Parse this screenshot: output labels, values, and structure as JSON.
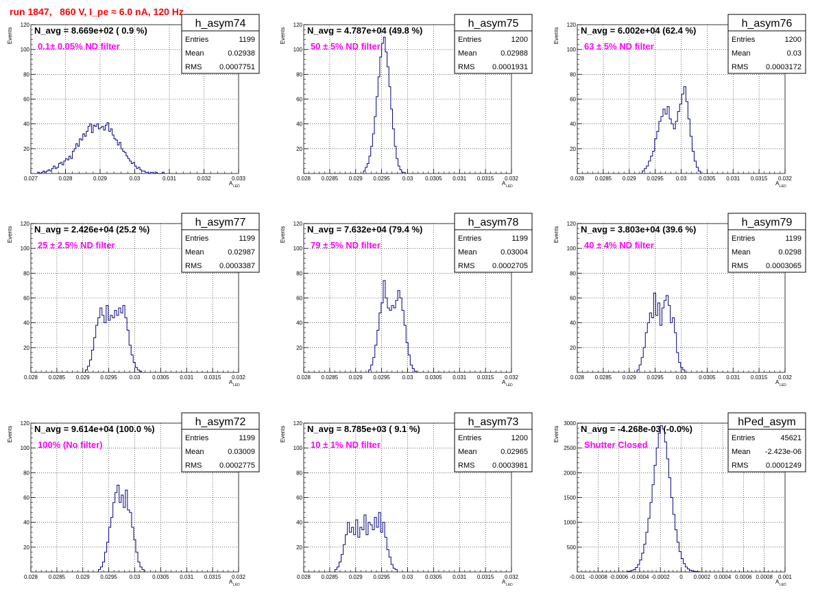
{
  "run_title": "run 1847,   860 V, I_pe ≈ 6.0 nA, 120 Hz",
  "y_axis_label": "Events",
  "x_axis_label": "A",
  "x_axis_label_sub": "LED",
  "stats_labels": {
    "entries": "Entries",
    "mean": "Mean",
    "rms": "RMS"
  },
  "colors": {
    "histogram": "#00007f",
    "title": "#ff0000",
    "filter": "#ff00ff",
    "grid": "#000000"
  },
  "chart_data": [
    {
      "type": "bar",
      "hist_name": "h_asym74",
      "nav_text": "N_avg = 8.669e+02 ( 0.9 %)",
      "filter_text": "0.1± 0.05% ND filter",
      "entries": "1199",
      "mean": "0.02938",
      "rms": "0.0007751",
      "xlim": [
        0.027,
        0.033
      ],
      "ylim": [
        0,
        120
      ],
      "x_ticks": [
        {
          "v": 0.027,
          "t": "0.027"
        },
        {
          "v": 0.028,
          "t": "0.028"
        },
        {
          "v": 0.029,
          "t": "0.029"
        },
        {
          "v": 0.03,
          "t": "0.03"
        },
        {
          "v": 0.031,
          "t": "0.031"
        },
        {
          "v": 0.032,
          "t": "0.032"
        },
        {
          "v": 0.033,
          "t": "0.033"
        }
      ],
      "y_ticks": [
        {
          "v": 20,
          "t": "20"
        },
        {
          "v": 40,
          "t": "40"
        },
        {
          "v": 60,
          "t": "60"
        },
        {
          "v": 80,
          "t": "80"
        },
        {
          "v": 100,
          "t": "100"
        },
        {
          "v": 120,
          "t": "120"
        }
      ],
      "bin_start": 0.0272,
      "bin_width": 5e-05,
      "values": [
        1,
        0,
        1,
        2,
        1,
        2,
        3,
        2,
        4,
        6,
        4,
        5,
        8,
        9,
        7,
        10,
        12,
        11,
        14,
        12,
        18,
        20,
        24,
        22,
        28,
        27,
        32,
        30,
        34,
        38,
        40,
        33,
        39,
        38,
        40,
        36,
        37,
        38,
        35,
        39,
        41,
        34,
        36,
        31,
        28,
        27,
        23,
        25,
        20,
        18,
        17,
        14,
        12,
        10,
        8,
        9,
        6,
        4,
        5,
        3,
        2,
        2,
        1,
        1,
        0,
        1,
        1,
        0,
        1,
        0,
        0,
        0,
        1
      ]
    },
    {
      "type": "bar",
      "hist_name": "h_asym75",
      "nav_text": "N_avg = 4.787e+04 (49.8 %)",
      "filter_text": "50 ± 5% ND filter",
      "entries": "1200",
      "mean": "0.02988",
      "rms": "0.0001931",
      "xlim": [
        0.028,
        0.032
      ],
      "ylim": [
        0,
        120
      ],
      "x_ticks": [
        {
          "v": 0.028,
          "t": "0.028"
        },
        {
          "v": 0.0285,
          "t": "0.0285"
        },
        {
          "v": 0.029,
          "t": "0.029"
        },
        {
          "v": 0.0295,
          "t": "0.0295"
        },
        {
          "v": 0.03,
          "t": "0.03"
        },
        {
          "v": 0.0305,
          "t": "0.0305"
        },
        {
          "v": 0.031,
          "t": "0.031"
        },
        {
          "v": 0.0315,
          "t": "0.0315"
        },
        {
          "v": 0.032,
          "t": "0.032"
        }
      ],
      "y_ticks": [
        {
          "v": 20,
          "t": "20"
        },
        {
          "v": 40,
          "t": "40"
        },
        {
          "v": 60,
          "t": "60"
        },
        {
          "v": 80,
          "t": "80"
        },
        {
          "v": 100,
          "t": "100"
        },
        {
          "v": 120,
          "t": "120"
        }
      ],
      "bin_start": 0.02915,
      "bin_width": 3.5e-05,
      "values": [
        2,
        5,
        8,
        14,
        22,
        32,
        46,
        62,
        78,
        94,
        105,
        110,
        98,
        86,
        70,
        52,
        36,
        22,
        12,
        6,
        3,
        1,
        1
      ]
    },
    {
      "type": "bar",
      "hist_name": "h_asym76",
      "nav_text": "N_avg = 6.002e+04 (62.4 %)",
      "filter_text": "63 ± 5% ND filter",
      "entries": "1200",
      "mean": "0.03",
      "rms": "0.0003172",
      "xlim": [
        0.028,
        0.032
      ],
      "ylim": [
        0,
        120
      ],
      "x_ticks": [
        {
          "v": 0.028,
          "t": "0.028"
        },
        {
          "v": 0.0285,
          "t": "0.0285"
        },
        {
          "v": 0.029,
          "t": "0.029"
        },
        {
          "v": 0.0295,
          "t": "0.0295"
        },
        {
          "v": 0.03,
          "t": "0.03"
        },
        {
          "v": 0.0305,
          "t": "0.0305"
        },
        {
          "v": 0.031,
          "t": "0.031"
        },
        {
          "v": 0.0315,
          "t": "0.0315"
        },
        {
          "v": 0.032,
          "t": "0.032"
        }
      ],
      "y_ticks": [
        {
          "v": 20,
          "t": "20"
        },
        {
          "v": 40,
          "t": "40"
        },
        {
          "v": 60,
          "t": "60"
        },
        {
          "v": 80,
          "t": "80"
        },
        {
          "v": 100,
          "t": "100"
        },
        {
          "v": 120,
          "t": "120"
        }
      ],
      "bin_start": 0.02925,
      "bin_width": 4e-05,
      "values": [
        2,
        4,
        6,
        10,
        14,
        18,
        28,
        34,
        42,
        46,
        52,
        48,
        54,
        44,
        40,
        36,
        42,
        50,
        56,
        64,
        70,
        58,
        44,
        30,
        18,
        10,
        5,
        2
      ]
    },
    {
      "type": "bar",
      "hist_name": "h_asym77",
      "nav_text": "N_avg = 2.426e+04 (25.2 %)",
      "filter_text": "25 ± 2.5% ND filter",
      "entries": "1199",
      "mean": "0.02987",
      "rms": "0.0003387",
      "xlim": [
        0.028,
        0.032
      ],
      "ylim": [
        0,
        120
      ],
      "x_ticks": [
        {
          "v": 0.028,
          "t": "0.028"
        },
        {
          "v": 0.0285,
          "t": "0.0285"
        },
        {
          "v": 0.029,
          "t": "0.029"
        },
        {
          "v": 0.0295,
          "t": "0.0295"
        },
        {
          "v": 0.03,
          "t": "0.03"
        },
        {
          "v": 0.0305,
          "t": "0.0305"
        },
        {
          "v": 0.031,
          "t": "0.031"
        },
        {
          "v": 0.0315,
          "t": "0.0315"
        },
        {
          "v": 0.032,
          "t": "0.032"
        }
      ],
      "y_ticks": [
        {
          "v": 20,
          "t": "20"
        },
        {
          "v": 40,
          "t": "40"
        },
        {
          "v": 60,
          "t": "60"
        },
        {
          "v": 80,
          "t": "80"
        },
        {
          "v": 100,
          "t": "100"
        },
        {
          "v": 120,
          "t": "120"
        }
      ],
      "bin_start": 0.02905,
      "bin_width": 4e-05,
      "values": [
        2,
        5,
        10,
        18,
        28,
        38,
        44,
        52,
        46,
        40,
        54,
        42,
        46,
        44,
        50,
        46,
        52,
        48,
        54,
        44,
        34,
        22,
        14,
        8,
        4,
        2,
        1
      ]
    },
    {
      "type": "bar",
      "hist_name": "h_asym78",
      "nav_text": "N_avg = 7.632e+04 (79.4 %)",
      "filter_text": "79 ± 5% ND filter",
      "entries": "1199",
      "mean": "0.03004",
      "rms": "0.0002705",
      "xlim": [
        0.028,
        0.032
      ],
      "ylim": [
        0,
        120
      ],
      "x_ticks": [
        {
          "v": 0.028,
          "t": "0.028"
        },
        {
          "v": 0.0285,
          "t": "0.0285"
        },
        {
          "v": 0.029,
          "t": "0.029"
        },
        {
          "v": 0.0295,
          "t": "0.0295"
        },
        {
          "v": 0.03,
          "t": "0.03"
        },
        {
          "v": 0.0305,
          "t": "0.0305"
        },
        {
          "v": 0.031,
          "t": "0.031"
        },
        {
          "v": 0.0315,
          "t": "0.0315"
        },
        {
          "v": 0.032,
          "t": "0.032"
        }
      ],
      "y_ticks": [
        {
          "v": 20,
          "t": "20"
        },
        {
          "v": 40,
          "t": "40"
        },
        {
          "v": 60,
          "t": "60"
        },
        {
          "v": 80,
          "t": "80"
        },
        {
          "v": 100,
          "t": "100"
        },
        {
          "v": 120,
          "t": "120"
        }
      ],
      "bin_start": 0.02925,
      "bin_width": 4e-05,
      "values": [
        2,
        6,
        12,
        22,
        34,
        48,
        56,
        74,
        60,
        52,
        50,
        54,
        52,
        58,
        66,
        60,
        50,
        38,
        24,
        14,
        6,
        3,
        1
      ]
    },
    {
      "type": "bar",
      "hist_name": "h_asym79",
      "nav_text": "N_avg = 3.803e+04 (39.6 %)",
      "filter_text": "40 ± 4% ND filter",
      "entries": "1199",
      "mean": "0.0298",
      "rms": "0.0003065",
      "xlim": [
        0.028,
        0.032
      ],
      "ylim": [
        0,
        120
      ],
      "x_ticks": [
        {
          "v": 0.028,
          "t": "0.028"
        },
        {
          "v": 0.0285,
          "t": "0.0285"
        },
        {
          "v": 0.029,
          "t": "0.029"
        },
        {
          "v": 0.0295,
          "t": "0.0295"
        },
        {
          "v": 0.03,
          "t": "0.03"
        },
        {
          "v": 0.0305,
          "t": "0.0305"
        },
        {
          "v": 0.031,
          "t": "0.031"
        },
        {
          "v": 0.0315,
          "t": "0.0315"
        },
        {
          "v": 0.032,
          "t": "0.032"
        }
      ],
      "y_ticks": [
        {
          "v": 20,
          "t": "20"
        },
        {
          "v": 40,
          "t": "40"
        },
        {
          "v": 60,
          "t": "60"
        },
        {
          "v": 80,
          "t": "80"
        },
        {
          "v": 100,
          "t": "100"
        },
        {
          "v": 120,
          "t": "120"
        }
      ],
      "bin_start": 0.02915,
      "bin_width": 4e-05,
      "values": [
        2,
        6,
        12,
        20,
        32,
        40,
        48,
        44,
        64,
        46,
        56,
        38,
        52,
        58,
        62,
        54,
        40,
        44,
        32,
        16,
        8,
        4,
        2
      ]
    },
    {
      "type": "bar",
      "hist_name": "h_asym72",
      "nav_text": "N_avg = 9.614e+04 (100.0 %)",
      "filter_text": "100% (No filter)",
      "entries": "1199",
      "mean": "0.03009",
      "rms": "0.0002775",
      "xlim": [
        0.028,
        0.032
      ],
      "ylim": [
        0,
        120
      ],
      "x_ticks": [
        {
          "v": 0.028,
          "t": "0.028"
        },
        {
          "v": 0.0285,
          "t": "0.0285"
        },
        {
          "v": 0.029,
          "t": "0.029"
        },
        {
          "v": 0.0295,
          "t": "0.0295"
        },
        {
          "v": 0.03,
          "t": "0.03"
        },
        {
          "v": 0.0305,
          "t": "0.0305"
        },
        {
          "v": 0.031,
          "t": "0.031"
        },
        {
          "v": 0.0315,
          "t": "0.0315"
        },
        {
          "v": 0.032,
          "t": "0.032"
        }
      ],
      "y_ticks": [
        {
          "v": 20,
          "t": "20"
        },
        {
          "v": 40,
          "t": "40"
        },
        {
          "v": 60,
          "t": "60"
        },
        {
          "v": 80,
          "t": "80"
        },
        {
          "v": 100,
          "t": "100"
        },
        {
          "v": 120,
          "t": "120"
        }
      ],
      "bin_start": 0.0293,
      "bin_width": 4e-05,
      "values": [
        2,
        4,
        8,
        16,
        24,
        36,
        44,
        56,
        64,
        70,
        56,
        62,
        52,
        66,
        50,
        48,
        36,
        26,
        16,
        8,
        4,
        2
      ]
    },
    {
      "type": "bar",
      "hist_name": "h_asym73",
      "nav_text": "N_avg = 8.785e+03 ( 9.1 %)",
      "filter_text": "10 ± 1% ND filter",
      "entries": "1200",
      "mean": "0.02965",
      "rms": "0.0003981",
      "xlim": [
        0.028,
        0.032
      ],
      "ylim": [
        0,
        120
      ],
      "x_ticks": [
        {
          "v": 0.028,
          "t": "0.028"
        },
        {
          "v": 0.0285,
          "t": "0.0285"
        },
        {
          "v": 0.029,
          "t": "0.029"
        },
        {
          "v": 0.0295,
          "t": "0.0295"
        },
        {
          "v": 0.03,
          "t": "0.03"
        },
        {
          "v": 0.0305,
          "t": "0.0305"
        },
        {
          "v": 0.031,
          "t": "0.031"
        },
        {
          "v": 0.0315,
          "t": "0.0315"
        },
        {
          "v": 0.032,
          "t": "0.032"
        }
      ],
      "y_ticks": [
        {
          "v": 20,
          "t": "20"
        },
        {
          "v": 40,
          "t": "40"
        },
        {
          "v": 60,
          "t": "60"
        },
        {
          "v": 80,
          "t": "80"
        },
        {
          "v": 100,
          "t": "100"
        },
        {
          "v": 120,
          "t": "120"
        }
      ],
      "bin_start": 0.0286,
      "bin_width": 4e-05,
      "values": [
        2,
        4,
        8,
        14,
        22,
        30,
        40,
        32,
        36,
        30,
        42,
        28,
        36,
        34,
        46,
        30,
        40,
        38,
        34,
        44,
        36,
        48,
        32,
        40,
        28,
        18,
        12,
        6,
        3,
        2
      ]
    },
    {
      "type": "bar",
      "hist_name": "hPed_asym",
      "nav_text": "N_avg = -4.268e-03 (-0.0%)",
      "filter_text": "Shutter Closed",
      "entries": "45621",
      "mean": "-2.423e-06",
      "rms": "0.0001249",
      "xlim": [
        -0.001,
        0.001
      ],
      "ylim": [
        0,
        3000
      ],
      "x_ticks": [
        {
          "v": -0.001,
          "t": "-0.001"
        },
        {
          "v": -0.0008,
          "t": "-0.0008"
        },
        {
          "v": -0.0006,
          "t": "-0.0006"
        },
        {
          "v": -0.0004,
          "t": "-0.0004"
        },
        {
          "v": -0.0002,
          "t": "-0.0002"
        },
        {
          "v": 0,
          "t": "0"
        },
        {
          "v": 0.0002,
          "t": "0.0002"
        },
        {
          "v": 0.0004,
          "t": "0.0004"
        },
        {
          "v": 0.0006,
          "t": "0.0006"
        },
        {
          "v": 0.0008,
          "t": "0.0008"
        },
        {
          "v": 0.001,
          "t": "0.001"
        }
      ],
      "y_ticks": [
        {
          "v": 500,
          "t": "500"
        },
        {
          "v": 1000,
          "t": "1000"
        },
        {
          "v": 1500,
          "t": "1500"
        },
        {
          "v": 2000,
          "t": "2000"
        },
        {
          "v": 2500,
          "t": "2500"
        },
        {
          "v": 3000,
          "t": "3000"
        }
      ],
      "bin_start": -0.00052,
      "bin_width": 2e-05,
      "values": [
        10,
        18,
        30,
        50,
        90,
        150,
        240,
        380,
        560,
        800,
        1080,
        1400,
        1760,
        2150,
        2500,
        2800,
        2950,
        2880,
        2620,
        2280,
        1900,
        1500,
        1160,
        850,
        600,
        410,
        270,
        170,
        100,
        60,
        35,
        20,
        12,
        8,
        6
      ]
    }
  ]
}
